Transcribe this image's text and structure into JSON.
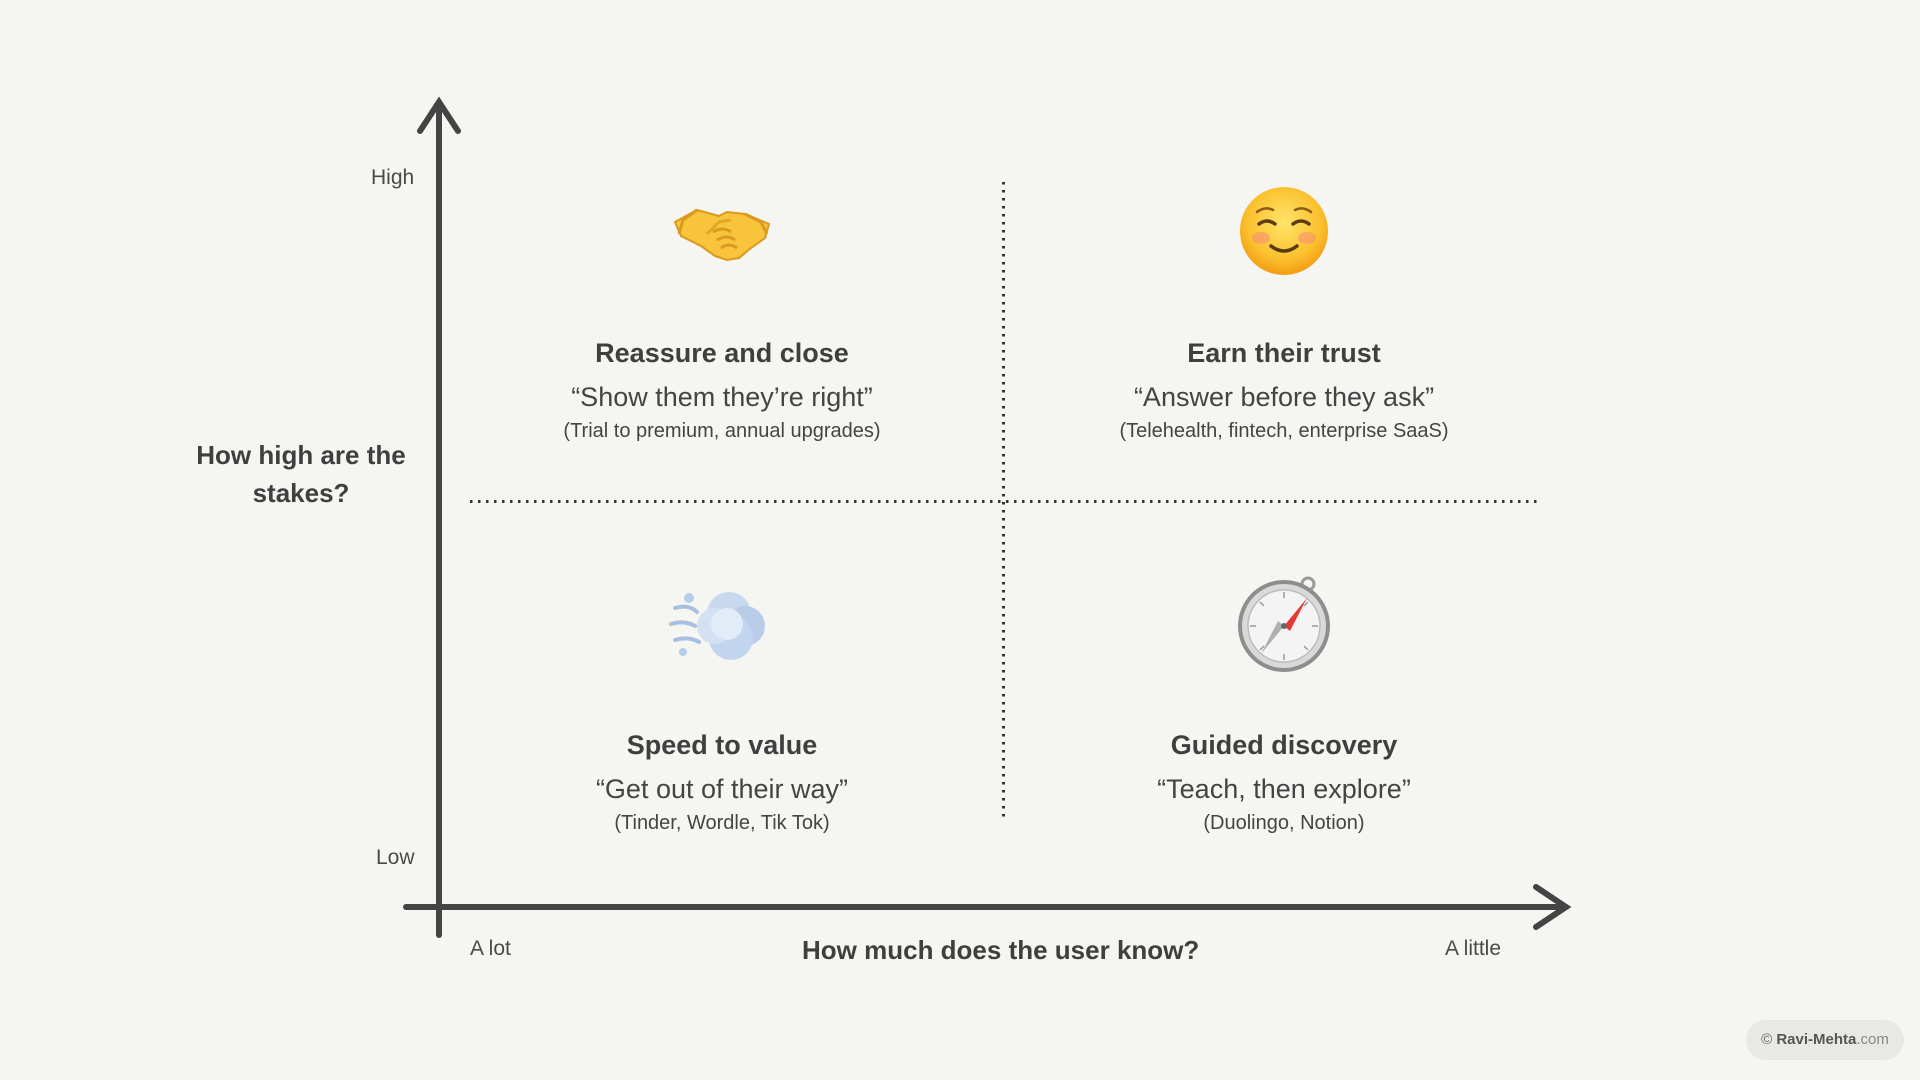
{
  "y_axis": {
    "title": "How high are the stakes?",
    "high_label": "High",
    "low_label": "Low"
  },
  "x_axis": {
    "title": "How much does the user know?",
    "left_label": "A lot",
    "right_label": "A little"
  },
  "quadrants": [
    {
      "icon": "handshake-icon",
      "title": "Reassure and close",
      "quote": "“Show them they’re right”",
      "examples": "(Trial to premium, annual upgrades)"
    },
    {
      "icon": "smiling-face-icon",
      "title": "Earn their trust",
      "quote": "“Answer before they ask”",
      "examples": "(Telehealth, fintech, enterprise SaaS)"
    },
    {
      "icon": "dashing-away-icon",
      "title": "Speed to value",
      "quote": "“Get out of their way”",
      "examples": "(Tinder, Wordle, Tik Tok)"
    },
    {
      "icon": "compass-icon",
      "title": "Guided discovery",
      "quote": "“Teach, then explore”",
      "examples": "(Duolingo, Notion)"
    }
  ],
  "copyright": {
    "symbol": "©",
    "name": "Ravi-Mehta",
    "suffix": ".com"
  },
  "colors": {
    "background": "#f5f5f2",
    "axis": "#444444",
    "text": "#444444"
  }
}
